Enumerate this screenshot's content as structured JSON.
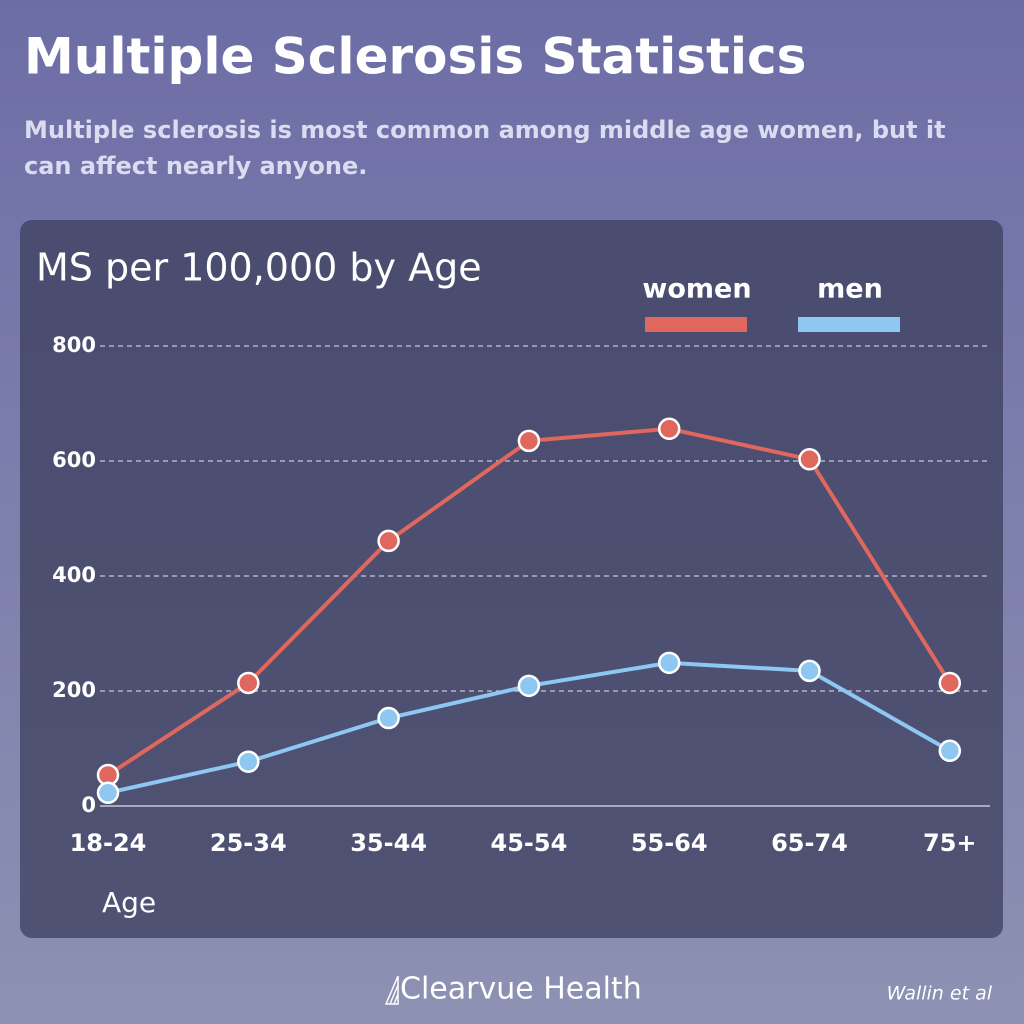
{
  "title": "Multiple Sclerosis Statistics",
  "subtitle": "Multiple sclerosis is most common among middle age women, but it can affect nearly anyone.",
  "chart_data": {
    "type": "line",
    "title": "MS per 100,000 by Age",
    "x_label": "Age",
    "categories": [
      "18-24",
      "25-34",
      "35-44",
      "45-54",
      "55-64",
      "65-74",
      "75+"
    ],
    "series": [
      {
        "name": "women",
        "color": "#e0675d",
        "values": [
          54,
          214,
          461,
          635,
          656,
          603,
          214
        ]
      },
      {
        "name": "men",
        "color": "#8ec8f2",
        "values": [
          23,
          77,
          153,
          209,
          249,
          235,
          96
        ]
      }
    ],
    "ylim": [
      0,
      800
    ],
    "yticks": [
      0,
      200,
      400,
      600,
      800
    ],
    "grid": true
  },
  "footer": {
    "brand": "Clearvue Health",
    "source": "Wallin et al"
  }
}
